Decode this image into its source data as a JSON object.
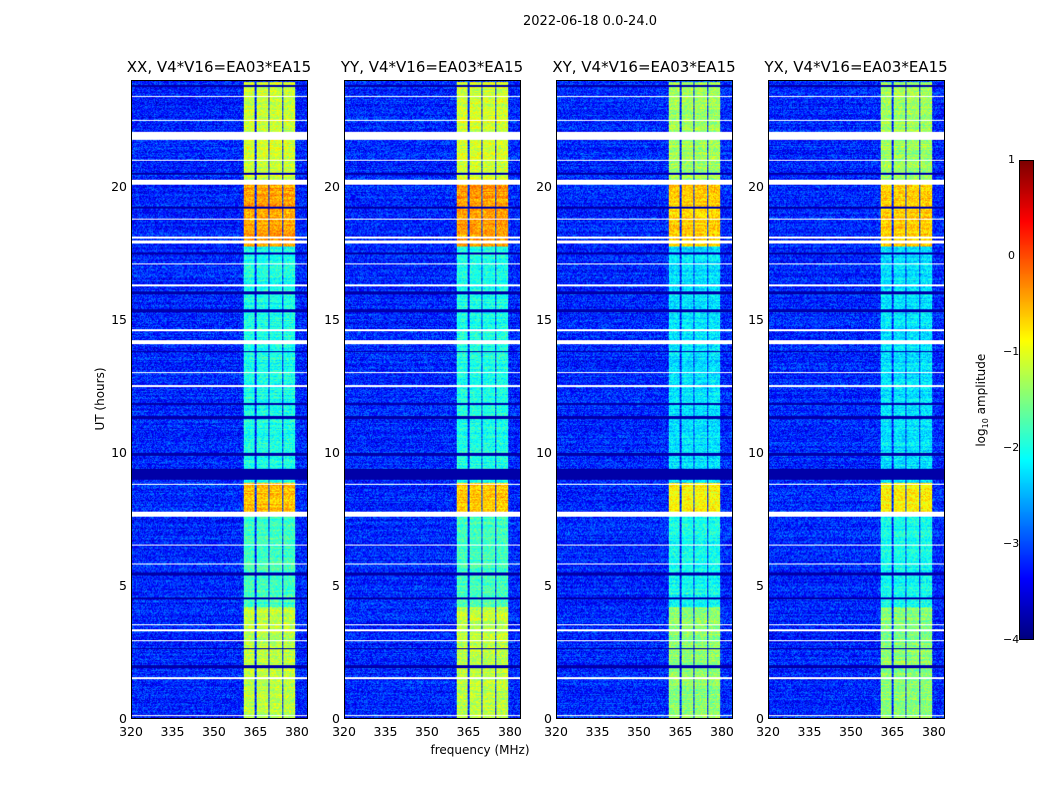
{
  "chart_data": {
    "type": "heatmap",
    "title": "2022-06-18 0.0-24.0",
    "xlabel": "frequency (MHz)",
    "ylabel": "UT (hours)",
    "xlim": [
      320,
      384
    ],
    "ylim": [
      0,
      24
    ],
    "xticks": [
      "320",
      "335",
      "350",
      "365",
      "380"
    ],
    "xtick_values": [
      320,
      335,
      350,
      365,
      380
    ],
    "yticks": [
      "0",
      "5",
      "10",
      "15",
      "20"
    ],
    "ytick_values": [
      0,
      5,
      10,
      15,
      20
    ],
    "colormap": "jet",
    "colorbar": {
      "label": "log10 amplitude",
      "label_main": "log",
      "label_sub": "10",
      "label_rest": " amplitude",
      "range": [
        -4,
        1
      ],
      "ticks": [
        "1",
        "0",
        "−1",
        "−2",
        "−3",
        "−4"
      ],
      "tick_values": [
        1,
        0,
        -1,
        -2,
        -3,
        -4
      ]
    },
    "panels": [
      {
        "title": "XX, V4*V16=EA03*EA15"
      },
      {
        "title": "YY, V4*V16=EA03*EA15"
      },
      {
        "title": "XY, V4*V16=EA03*EA15"
      },
      {
        "title": "YX, V4*V16=EA03*EA15"
      }
    ],
    "background_level": -3.2,
    "bright_subbands_mhz": [
      [
        360.5,
        364.8
      ],
      [
        365.3,
        369.7
      ],
      [
        370.2,
        374.6
      ],
      [
        375.1,
        379.6
      ]
    ],
    "band_levels": [
      {
        "from": 0,
        "to": 4.2,
        "level": -1.2
      },
      {
        "from": 4.2,
        "to": 7.7,
        "level": -1.8
      },
      {
        "from": 7.8,
        "to": 8.9,
        "level": -0.6
      },
      {
        "from": 8.9,
        "to": 17.8,
        "level": -2.0
      },
      {
        "from": 17.8,
        "to": 20.2,
        "level": -0.4
      },
      {
        "from": 20.3,
        "to": 24,
        "level": -1.1
      }
    ],
    "flagged_hours": [
      [
        0.1,
        0.15
      ],
      [
        1.5,
        1.55
      ],
      [
        2.9,
        2.95
      ],
      [
        3.3,
        3.35
      ],
      [
        3.5,
        3.55
      ],
      [
        5.8,
        5.85
      ],
      [
        6.5,
        6.55
      ],
      [
        7.6,
        7.8
      ],
      [
        8.8,
        8.85
      ],
      [
        12.5,
        12.55
      ],
      [
        13.0,
        13.05
      ],
      [
        14.1,
        14.25
      ],
      [
        14.6,
        14.65
      ],
      [
        16.3,
        16.35
      ],
      [
        17.1,
        17.15
      ],
      [
        17.9,
        18.0
      ],
      [
        18.1,
        18.15
      ],
      [
        18.8,
        18.85
      ],
      [
        20.1,
        20.3
      ],
      [
        21.0,
        21.05
      ],
      [
        21.8,
        22.1
      ],
      [
        22.5,
        22.55
      ],
      [
        23.4,
        23.45
      ]
    ],
    "dark_hours": [
      [
        1.9,
        2.0
      ],
      [
        2.6,
        2.65
      ],
      [
        4.5,
        4.55
      ],
      [
        5.4,
        5.5
      ],
      [
        9.0,
        9.4
      ],
      [
        9.9,
        10.0
      ],
      [
        11.3,
        11.4
      ],
      [
        11.8,
        11.9
      ],
      [
        13.8,
        13.85
      ],
      [
        15.3,
        15.4
      ],
      [
        16.0,
        16.1
      ],
      [
        17.5,
        17.55
      ],
      [
        19.2,
        19.3
      ],
      [
        20.5,
        20.55
      ],
      [
        23.8,
        23.85
      ]
    ]
  }
}
